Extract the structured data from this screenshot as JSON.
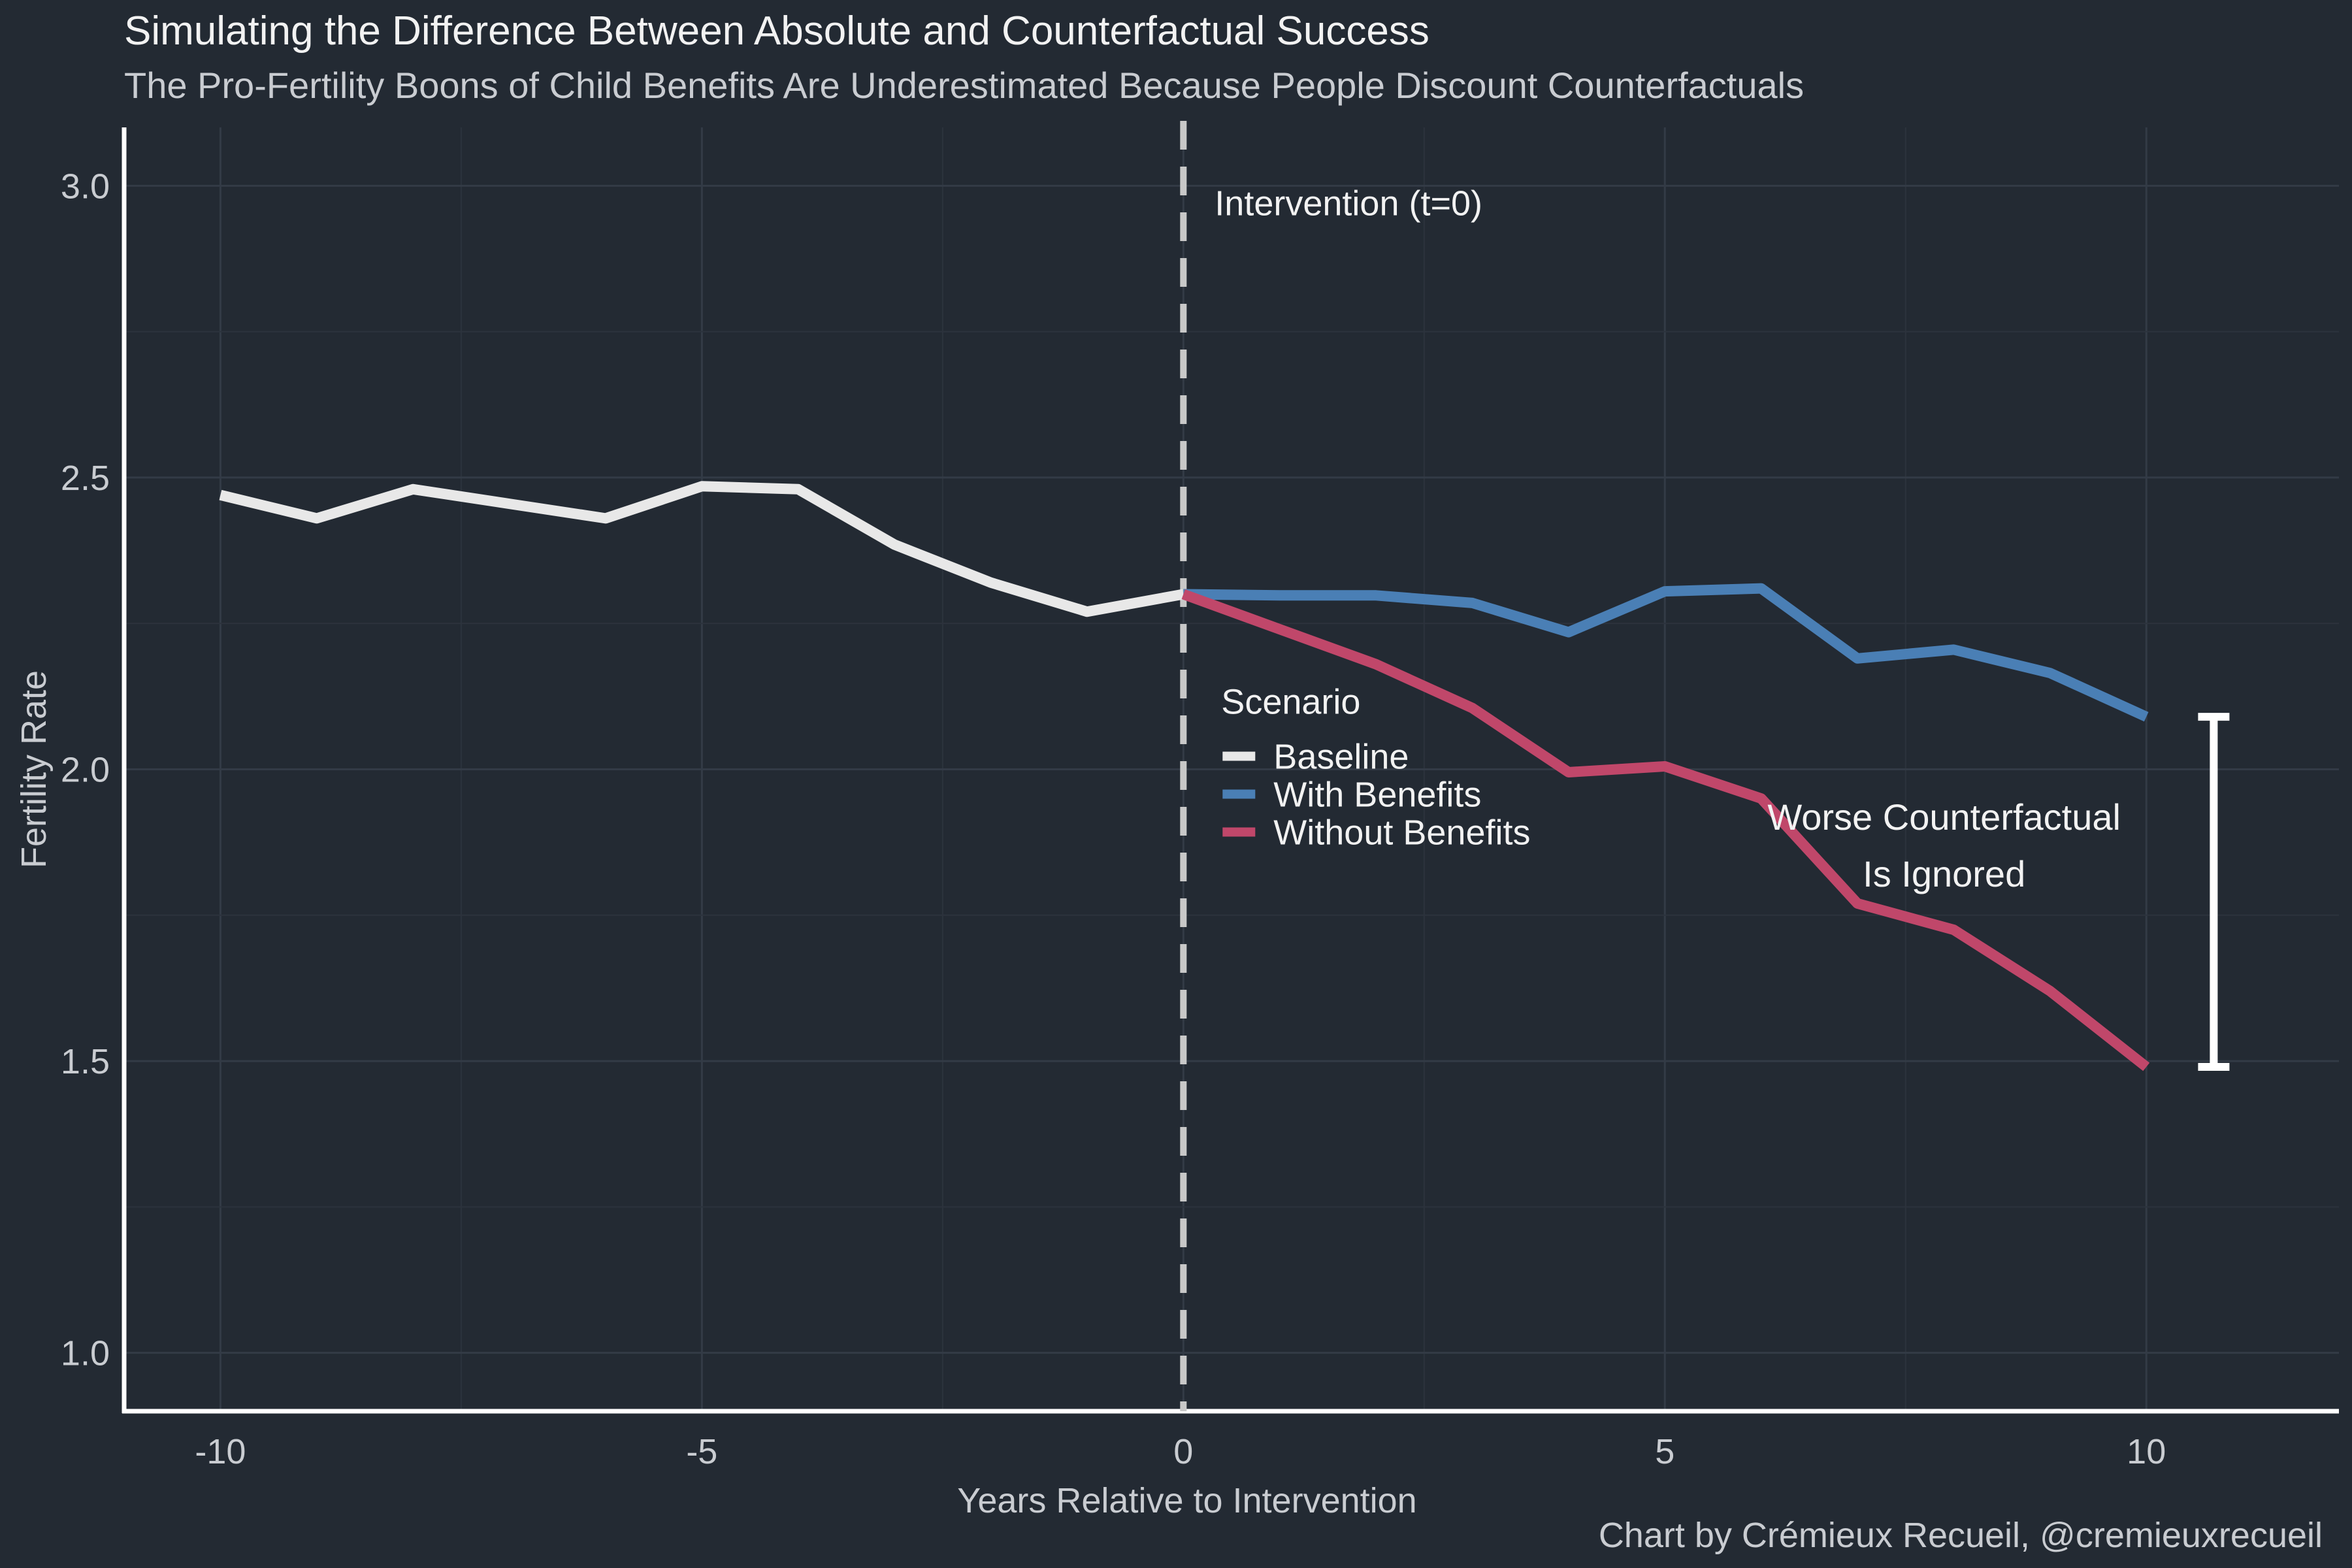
{
  "chart_data": {
    "type": "line",
    "title": "Simulating the Difference Between Absolute and Counterfactual Success",
    "subtitle": "The Pro-Fertility Boons of Child Benefits Are Underestimated Because People Discount Counterfactuals",
    "xlabel": "Years Relative to Intervention",
    "ylabel": "Fertility Rate",
    "caption": "Chart by Crémieux Recueil, @cremieuxrecueil",
    "xlim": [
      -11,
      12
    ],
    "ylim": [
      0.9,
      3.1
    ],
    "xticks": [
      -10,
      -5,
      0,
      5,
      10
    ],
    "xtick_labels": [
      "-10",
      "-5",
      "0",
      "5",
      "10"
    ],
    "yticks": [
      1.0,
      1.5,
      2.0,
      2.5,
      3.0
    ],
    "ytick_labels": [
      "1.0",
      "1.5",
      "2.0",
      "2.5",
      "3.0"
    ],
    "grid": true,
    "legend": {
      "title": "Scenario",
      "position": "center"
    },
    "annotations": {
      "intervention_label": "Intervention (t=0)",
      "intervention_x": 0,
      "gap_label_line1": "Worse Counterfactual",
      "gap_label_line2": "Is Ignored",
      "gap_bracket_x": 10.7,
      "gap_bracket_y": [
        1.49,
        2.09
      ]
    },
    "series": [
      {
        "name": "Baseline",
        "color": "#e8e8e8",
        "x": [
          -10,
          -9,
          -8,
          -7,
          -6,
          -5,
          -4,
          -3,
          -2,
          -1,
          0
        ],
        "values": [
          2.47,
          2.43,
          2.48,
          2.455,
          2.43,
          2.485,
          2.48,
          2.385,
          2.32,
          2.27,
          2.3
        ]
      },
      {
        "name": "With Benefits",
        "color": "#4a7fb5",
        "x": [
          0,
          1,
          2,
          3,
          4,
          5,
          6,
          7,
          8,
          9,
          10
        ],
        "values": [
          2.3,
          2.298,
          2.298,
          2.285,
          2.235,
          2.305,
          2.31,
          2.19,
          2.205,
          2.165,
          2.09
        ]
      },
      {
        "name": "Without Benefits",
        "color": "#c0476a",
        "x": [
          0,
          1,
          2,
          3,
          4,
          5,
          6,
          7,
          8,
          9,
          10
        ],
        "values": [
          2.3,
          2.24,
          2.18,
          2.105,
          1.995,
          2.005,
          1.95,
          1.77,
          1.725,
          1.62,
          1.49
        ]
      }
    ]
  }
}
